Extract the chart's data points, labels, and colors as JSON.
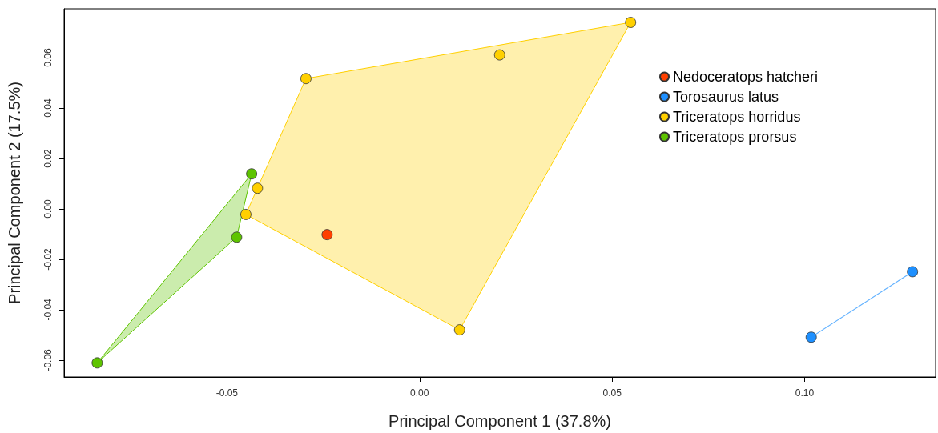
{
  "chart_data": {
    "type": "scatter",
    "xlabel": "Principal Component 1 (37.8%)",
    "ylabel": "Principal Component 2 (17.5%)",
    "xlim": [
      -0.0923,
      0.134
    ],
    "ylim": [
      -0.0667,
      0.0794
    ],
    "xticks": [
      {
        "value": -0.05,
        "label": "-0.05"
      },
      {
        "value": 0,
        "label": "0.00"
      },
      {
        "value": 0.05,
        "label": "0.05"
      },
      {
        "value": 0.1,
        "label": "0.10"
      }
    ],
    "yticks": [
      {
        "value": -0.06,
        "label": "-0.06"
      },
      {
        "value": -0.04,
        "label": "-0.04"
      },
      {
        "value": -0.02,
        "label": "-0.02"
      },
      {
        "value": 0,
        "label": "0.00"
      },
      {
        "value": 0.02,
        "label": "0.02"
      },
      {
        "value": 0.04,
        "label": "0.04"
      },
      {
        "value": 0.06,
        "label": "0.06"
      }
    ],
    "legend": "top right",
    "marker": "circle",
    "series": [
      {
        "name": "Nedoceratops hatcheri",
        "color": "#ff4000",
        "x": [
          -0.024
        ],
        "values": [
          -0.0102
        ]
      },
      {
        "name": "Torosaurus latus",
        "color": "#1e90ff",
        "x": [
          0.128,
          0.1017
        ],
        "values": [
          -0.0249,
          -0.0509
        ]
      },
      {
        "name": "Triceratops horridus",
        "color": "#ffd000",
        "x": [
          0.0548,
          0.0208,
          -0.0295,
          -0.0421,
          -0.0451,
          0.0104
        ],
        "values": [
          0.074,
          0.0611,
          0.0517,
          0.0082,
          -0.0022,
          -0.048
        ]
      },
      {
        "name": "Triceratops prorsus",
        "color": "#5ec400",
        "x": [
          -0.0436,
          -0.0475,
          -0.0837
        ],
        "values": [
          0.0139,
          -0.0112,
          -0.0611
        ]
      },
      {
        "type": "area",
        "marker": "none",
        "color": "#ffd000",
        "x": [
          -0.0295,
          0.0548,
          0.0104,
          -0.0451,
          -0.0421,
          -0.0295
        ],
        "values": [
          0.0517,
          0.074,
          -0.048,
          -0.0022,
          0.0082,
          0.0517
        ]
      },
      {
        "type": "area",
        "marker": "none",
        "color": "#5ec400",
        "x": [
          -0.0436,
          -0.0475,
          -0.0837,
          -0.0436
        ],
        "values": [
          0.0139,
          -0.0112,
          -0.0611,
          0.0139
        ]
      },
      {
        "type": "line",
        "marker": "none",
        "color": "#1e90ff",
        "x": [
          0.1017,
          0.128
        ],
        "values": [
          -0.0509,
          -0.0249
        ]
      }
    ]
  }
}
